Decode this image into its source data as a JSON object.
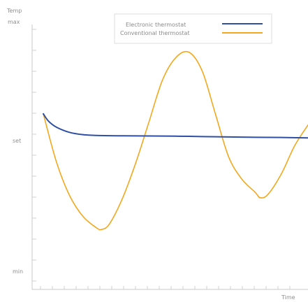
{
  "chart_data": {
    "type": "line",
    "title": "",
    "xlabel": "Time",
    "ylabel": "Temp",
    "x_ticks": [],
    "y_ticks": [
      "max",
      "set",
      "min"
    ],
    "xlim": [
      0,
      100
    ],
    "ylim": [
      0,
      100
    ],
    "grid": false,
    "legend_position": "top-right",
    "series": [
      {
        "name": "Electronic thermostat",
        "color": "#2e4fa5",
        "points": [
          [
            0,
            72
          ],
          [
            2,
            68
          ],
          [
            5,
            64.8
          ],
          [
            10,
            62
          ],
          [
            15,
            60.8
          ],
          [
            20,
            60.4
          ],
          [
            30,
            60.2
          ],
          [
            40,
            60.1
          ],
          [
            50,
            60
          ],
          [
            60,
            59.8
          ],
          [
            70,
            59.6
          ],
          [
            80,
            59.4
          ],
          [
            90,
            59.3
          ],
          [
            100,
            59.1
          ]
        ]
      },
      {
        "name": "Conventional thermostat",
        "color": "#f2a81c",
        "points": [
          [
            0,
            72
          ],
          [
            5,
            46
          ],
          [
            10,
            28
          ],
          [
            15,
            17
          ],
          [
            20,
            11
          ],
          [
            22,
            10
          ],
          [
            25,
            13
          ],
          [
            30,
            27
          ],
          [
            35,
            46
          ],
          [
            40,
            68
          ],
          [
            45,
            90
          ],
          [
            50,
            102
          ],
          [
            55,
            105
          ],
          [
            60,
            95
          ],
          [
            65,
            72
          ],
          [
            70,
            49
          ],
          [
            75,
            37
          ],
          [
            80,
            30
          ],
          [
            82,
            27
          ],
          [
            85,
            29
          ],
          [
            90,
            40
          ],
          [
            95,
            55
          ],
          [
            100,
            66
          ]
        ]
      }
    ]
  }
}
